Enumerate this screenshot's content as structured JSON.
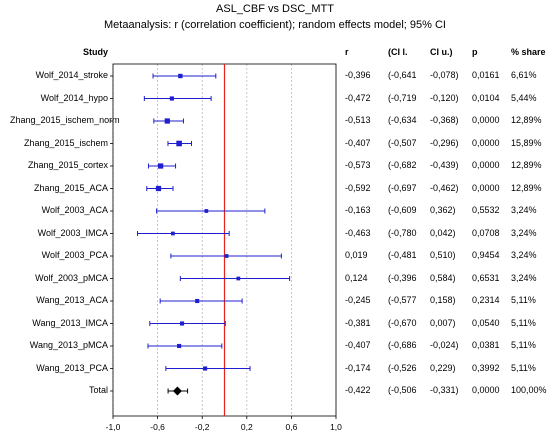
{
  "chart_data": {
    "type": "forest",
    "title": "ASL_CBF vs DSC_MTT",
    "subtitle": "Metaanalysis: r (correlation coefficient); random effects model; 95% CI",
    "columns": [
      "Study",
      "r",
      "(CI l.",
      "CI u.)",
      "p",
      "% share"
    ],
    "xlim": [
      -1.0,
      1.0
    ],
    "xticks": [
      "-1,0",
      "-0,6",
      "-0,2",
      "0,2",
      "0,6",
      "1,0"
    ],
    "xtick_values": [
      -1.0,
      -0.6,
      -0.2,
      0.2,
      0.6,
      1.0
    ],
    "grid": true,
    "reference_line": 0.0,
    "reference_color": "#e8231e",
    "study_color": "#1f1fd0",
    "total_color": "#000000",
    "rows": [
      {
        "study": "Wolf_2014_stroke",
        "r": -0.396,
        "lo": -0.641,
        "hi": -0.078,
        "r_txt": "-0,396",
        "lo_txt": "(-0,641",
        "hi_txt": "-0,078)",
        "p": "0,0161",
        "share": "6,61%",
        "weight": 6.61
      },
      {
        "study": "Wolf_2014_hypo",
        "r": -0.472,
        "lo": -0.719,
        "hi": -0.12,
        "r_txt": "-0,472",
        "lo_txt": "(-0,719",
        "hi_txt": "-0,120)",
        "p": "0,0104",
        "share": "5,44%",
        "weight": 5.44
      },
      {
        "study": "Zhang_2015_ischem_norm",
        "r": -0.513,
        "lo": -0.634,
        "hi": -0.368,
        "r_txt": "-0,513",
        "lo_txt": "(-0,634",
        "hi_txt": "-0,368)",
        "p": "0,0000",
        "share": "12,89%",
        "weight": 12.89
      },
      {
        "study": "Zhang_2015_ischem",
        "r": -0.407,
        "lo": -0.507,
        "hi": -0.296,
        "r_txt": "-0,407",
        "lo_txt": "(-0,507",
        "hi_txt": "-0,296)",
        "p": "0,0000",
        "share": "15,89%",
        "weight": 15.89
      },
      {
        "study": "Zhang_2015_cortex",
        "r": -0.573,
        "lo": -0.682,
        "hi": -0.439,
        "r_txt": "-0,573",
        "lo_txt": "(-0,682",
        "hi_txt": "-0,439)",
        "p": "0,0000",
        "share": "12,89%",
        "weight": 12.89
      },
      {
        "study": "Zhang_2015_ACA",
        "r": -0.592,
        "lo": -0.697,
        "hi": -0.462,
        "r_txt": "-0,592",
        "lo_txt": "(-0,697",
        "hi_txt": "-0,462)",
        "p": "0,0000",
        "share": "12,89%",
        "weight": 12.89
      },
      {
        "study": "Wolf_2003_ACA",
        "r": -0.163,
        "lo": -0.609,
        "hi": 0.362,
        "r_txt": "-0,163",
        "lo_txt": "(-0,609",
        "hi_txt": "0,362)",
        "p": "0,5532",
        "share": "3,24%",
        "weight": 3.24
      },
      {
        "study": "Wolf_2003_IMCA",
        "r": -0.463,
        "lo": -0.78,
        "hi": 0.042,
        "r_txt": "-0,463",
        "lo_txt": "(-0,780",
        "hi_txt": "0,042)",
        "p": "0,0708",
        "share": "3,24%",
        "weight": 3.24
      },
      {
        "study": "Wolf_2003_PCA",
        "r": 0.019,
        "lo": -0.481,
        "hi": 0.51,
        "r_txt": "0,019",
        "lo_txt": "(-0,481",
        "hi_txt": "0,510)",
        "p": "0,9454",
        "share": "3,24%",
        "weight": 3.24
      },
      {
        "study": "Wolf_2003_pMCA",
        "r": 0.124,
        "lo": -0.396,
        "hi": 0.584,
        "r_txt": "0,124",
        "lo_txt": "(-0,396",
        "hi_txt": "0,584)",
        "p": "0,6531",
        "share": "3,24%",
        "weight": 3.24
      },
      {
        "study": "Wang_2013_ACA",
        "r": -0.245,
        "lo": -0.577,
        "hi": 0.158,
        "r_txt": "-0,245",
        "lo_txt": "(-0,577",
        "hi_txt": "0,158)",
        "p": "0,2314",
        "share": "5,11%",
        "weight": 5.11
      },
      {
        "study": "Wang_2013_IMCA",
        "r": -0.381,
        "lo": -0.67,
        "hi": 0.007,
        "r_txt": "-0,381",
        "lo_txt": "(-0,670",
        "hi_txt": "0,007)",
        "p": "0,0540",
        "share": "5,11%",
        "weight": 5.11
      },
      {
        "study": "Wang_2013_pMCA",
        "r": -0.407,
        "lo": -0.686,
        "hi": -0.024,
        "r_txt": "-0,407",
        "lo_txt": "(-0,686",
        "hi_txt": "-0,024)",
        "p": "0,0381",
        "share": "5,11%",
        "weight": 5.11
      },
      {
        "study": "Wang_2013_PCA",
        "r": -0.174,
        "lo": -0.526,
        "hi": 0.229,
        "r_txt": "-0,174",
        "lo_txt": "(-0,526",
        "hi_txt": "0,229)",
        "p": "0,3992",
        "share": "5,11%",
        "weight": 5.11
      },
      {
        "study": "Total",
        "r": -0.422,
        "lo": -0.506,
        "hi": -0.331,
        "r_txt": "-0,422",
        "lo_txt": "(-0,506",
        "hi_txt": "-0,331)",
        "p": "0,0000",
        "share": "100,00%",
        "total": true
      }
    ]
  }
}
